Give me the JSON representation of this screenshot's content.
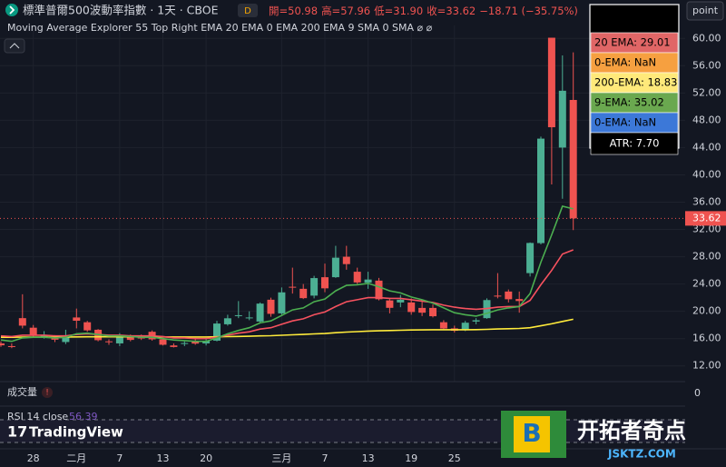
{
  "header": {
    "title": "標準普爾500波動率指數 · 1天 · CBOE",
    "badge": "D",
    "ohlc": [
      "開=50.98",
      "高=57.96",
      "低=31.90",
      "收=33.62",
      "−18.71 (−35.75%)"
    ],
    "indicator": "Moving Average Explorer 55 Top Right EMA 20 EMA 0 EMA 200 EMA 9 SMA 0 SMA ⌀ ⌀",
    "button": "point"
  },
  "info_table": [
    {
      "text": "20 EMA: 29.01",
      "color": "#e06666"
    },
    {
      "text": "0-EMA: NaN",
      "color": "#f6a040"
    },
    {
      "text": "200-EMA: 18.83",
      "color": "#ffe97a"
    },
    {
      "text": "9-EMA: 35.02",
      "color": "#6aa84f"
    },
    {
      "text": "0-EMA: NaN",
      "color": "#3c78d8"
    },
    {
      "text": "ATR: 7.70",
      "color": "#000000"
    }
  ],
  "last_price_label": "33.62",
  "volume_pane": {
    "label": "成交量",
    "zero_label": "0"
  },
  "rsi_pane": {
    "label": "RSI 14 close",
    "value": "56.39"
  },
  "logo": "TradingView",
  "watermark": {
    "name": "开拓者奇点",
    "url": "JSKTZ.COM"
  },
  "chart_data": {
    "type": "candlestick",
    "categories": [
      null,
      null,
      null,
      "28",
      null,
      null,
      null,
      "二月",
      null,
      null,
      null,
      "7",
      null,
      null,
      null,
      "13",
      null,
      null,
      null,
      "20",
      null,
      null,
      null,
      null,
      null,
      null,
      "三月",
      null,
      null,
      null,
      "7",
      null,
      null,
      null,
      "13",
      null,
      null,
      null,
      "19",
      null,
      null,
      null,
      "25",
      null,
      null,
      null,
      null,
      null,
      null,
      null,
      null,
      null,
      null,
      null
    ],
    "open": [
      15.3,
      14.9,
      19.0,
      17.6,
      16.3,
      16.2,
      15.5,
      19.1,
      18.4,
      17.3,
      15.6,
      15.3,
      16.4,
      16.3,
      17.0,
      15.9,
      15.0,
      15.3,
      15.6,
      15.3,
      15.7,
      18.1,
      19.4,
      19.0,
      18.5,
      21.7,
      19.7,
      23.6,
      23.3,
      22.3,
      25.0,
      25.0,
      28.0,
      25.8,
      24.2,
      24.5,
      21.6,
      21.3,
      21.3,
      20.5,
      20.5,
      18.4,
      17.5,
      17.3,
      18.5,
      19.0,
      22.3,
      22.9,
      21.8,
      25.6,
      30.0,
      60.1,
      44.0,
      50.98
    ],
    "high": [
      15.6,
      15.3,
      22.5,
      18.0,
      17.1,
      16.5,
      17.3,
      20.4,
      18.6,
      17.4,
      15.9,
      16.8,
      16.6,
      16.6,
      17.2,
      16.1,
      15.3,
      15.6,
      15.9,
      16.1,
      18.6,
      19.5,
      21.5,
      20.0,
      21.3,
      22.0,
      23.5,
      26.4,
      24.0,
      25.2,
      27.0,
      29.6,
      29.6,
      26.4,
      25.8,
      24.9,
      21.8,
      22.4,
      21.9,
      21.4,
      21.0,
      18.7,
      17.9,
      18.6,
      19.0,
      21.9,
      25.6,
      23.2,
      22.9,
      30.1,
      45.6,
      60.1,
      57.5,
      57.96
    ],
    "low": [
      14.8,
      14.6,
      17.5,
      16.2,
      16.0,
      15.5,
      15.2,
      17.5,
      17.0,
      15.6,
      15.1,
      14.9,
      15.6,
      15.8,
      15.7,
      15.0,
      14.7,
      14.9,
      15.1,
      15.0,
      15.6,
      17.9,
      19.0,
      18.7,
      18.2,
      19.2,
      19.5,
      22.6,
      21.8,
      21.9,
      22.8,
      24.9,
      26.1,
      24.0,
      23.3,
      21.6,
      19.7,
      20.6,
      19.5,
      19.3,
      19.1,
      17.4,
      16.9,
      17.1,
      18.1,
      18.9,
      21.9,
      21.3,
      19.8,
      25.1,
      29.8,
      38.6,
      36.5,
      31.9
    ],
    "close": [
      15.02,
      14.85,
      17.9,
      16.41,
      16.56,
      15.84,
      16.43,
      18.62,
      17.21,
      15.77,
      15.5,
      16.54,
      15.81,
      16.02,
      15.89,
      15.1,
      14.77,
      15.35,
      15.27,
      15.66,
      18.21,
      18.98,
      19.43,
      19.1,
      21.13,
      19.63,
      22.78,
      23.51,
      21.93,
      24.87,
      23.37,
      27.86,
      26.92,
      24.23,
      24.66,
      21.77,
      20.51,
      21.7,
      19.9,
      19.8,
      19.28,
      17.48,
      17.15,
      18.33,
      18.69,
      21.65,
      22.28,
      21.77,
      21.51,
      30.02,
      45.31,
      46.98,
      52.33,
      33.62
    ],
    "up_color": "#4caf93",
    "down_color": "#ef5350",
    "series": [
      {
        "name": "200 EMA",
        "color": "#ffeb3b",
        "values": [
          16.2,
          16.2,
          16.22,
          16.22,
          16.23,
          16.23,
          16.23,
          16.25,
          16.26,
          16.26,
          16.26,
          16.26,
          16.26,
          16.26,
          16.26,
          16.25,
          16.24,
          16.24,
          16.24,
          16.24,
          16.26,
          16.29,
          16.32,
          16.35,
          16.4,
          16.43,
          16.49,
          16.56,
          16.61,
          16.69,
          16.75,
          16.86,
          16.96,
          17.03,
          17.1,
          17.15,
          17.18,
          17.23,
          17.26,
          17.28,
          17.3,
          17.3,
          17.3,
          17.31,
          17.32,
          17.36,
          17.41,
          17.45,
          17.49,
          17.6,
          17.88,
          18.17,
          18.51,
          18.83
        ]
      },
      {
        "name": "20 EMA",
        "color": "#f7525f",
        "values": [
          16.4,
          16.3,
          16.5,
          16.5,
          16.5,
          16.4,
          16.4,
          16.6,
          16.7,
          16.6,
          16.5,
          16.5,
          16.4,
          16.4,
          16.4,
          16.3,
          16.1,
          16.1,
          16.0,
          16.0,
          16.2,
          16.5,
          16.8,
          17.0,
          17.4,
          17.6,
          18.1,
          18.6,
          18.9,
          19.5,
          19.9,
          20.7,
          21.4,
          21.7,
          22.0,
          22.0,
          21.9,
          21.9,
          21.7,
          21.5,
          21.3,
          20.9,
          20.6,
          20.4,
          20.3,
          20.4,
          20.6,
          20.7,
          20.7,
          21.6,
          23.9,
          26.0,
          28.4,
          29.01
        ]
      },
      {
        "name": "9 EMA",
        "color": "#4caf50",
        "values": [
          15.8,
          15.6,
          16.1,
          16.2,
          16.2,
          16.1,
          16.2,
          16.7,
          16.8,
          16.6,
          16.4,
          16.4,
          16.3,
          16.2,
          16.2,
          16.0,
          15.8,
          15.7,
          15.6,
          15.6,
          16.1,
          16.7,
          17.2,
          17.6,
          18.3,
          18.6,
          19.4,
          20.2,
          20.5,
          21.4,
          21.8,
          23.0,
          23.8,
          23.9,
          24.1,
          23.6,
          23.0,
          22.7,
          22.1,
          21.7,
          21.2,
          20.5,
          19.8,
          19.5,
          19.3,
          19.7,
          20.2,
          20.5,
          20.7,
          22.6,
          27.2,
          31.2,
          35.4,
          35.02
        ]
      }
    ],
    "ylim": [
      9.7,
      61.9
    ],
    "yticks": [
      {
        "value": 12,
        "label": "12.00"
      },
      {
        "value": 16,
        "label": "16.00"
      },
      {
        "value": 20,
        "label": "20.00"
      },
      {
        "value": 24,
        "label": "24.00"
      },
      {
        "value": 28,
        "label": "28.00"
      },
      {
        "value": 32,
        "label": "32.00"
      },
      {
        "value": 36,
        "label": "36.00"
      },
      {
        "value": 40,
        "label": "40.00"
      },
      {
        "value": 44,
        "label": "44.00"
      },
      {
        "value": 48,
        "label": "48.00"
      },
      {
        "value": 52,
        "label": "52.00"
      },
      {
        "value": 56,
        "label": "56.00"
      },
      {
        "value": 60,
        "label": "60.00"
      }
    ],
    "grid": true
  }
}
